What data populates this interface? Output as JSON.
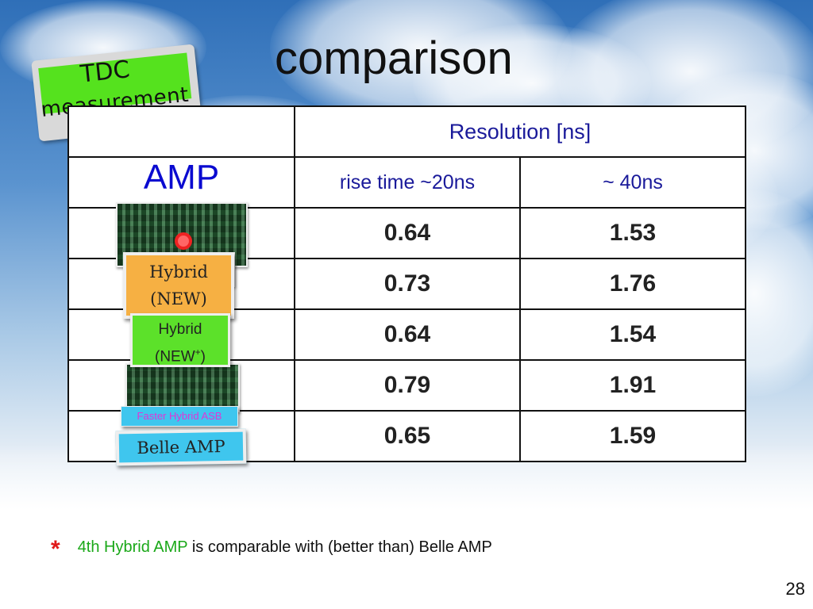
{
  "slide": {
    "title": "comparison",
    "badge": {
      "line1": "TDC",
      "line2": "measurement"
    },
    "page_number": "28"
  },
  "table": {
    "header_resolution": "Resolution [ns]",
    "amp_header": "AMP",
    "col_rise_20": "rise time ~20ns",
    "col_40": "~ 40ns",
    "rows": [
      {
        "label": "",
        "r20": "0.64",
        "r40": "1.53"
      },
      {
        "label": "Hybrid (NEW)",
        "r20": "0.73",
        "r40": "1.76"
      },
      {
        "label": "Hybrid (NEW+)",
        "r20": "0.64",
        "r40": "1.54"
      },
      {
        "label": "Faster Hybrid ASB",
        "r20": "0.79",
        "r40": "1.91"
      },
      {
        "label": "Belle AMP",
        "r20": "0.65",
        "r40": "1.59"
      }
    ]
  },
  "labels": {
    "orange_l1": "Hybrid",
    "orange_l2": "(NEW)",
    "green_l1": "Hybrid",
    "green_l2_pre": "(NEW",
    "green_l2_sup": "+",
    "green_l2_post": ")",
    "faster": "Faster Hybrid ASB",
    "belle": "Belle AMP"
  },
  "note": {
    "star": "*",
    "highlight": "4th Hybrid AMP",
    "rest": " is comparable with (better than) Belle AMP"
  },
  "colors": {
    "badge_green": "#55e21e",
    "header_blue": "#1a1a9a",
    "amp_blue": "#0a0ad0",
    "note_green": "#1aa818",
    "star_red": "#e01818"
  }
}
